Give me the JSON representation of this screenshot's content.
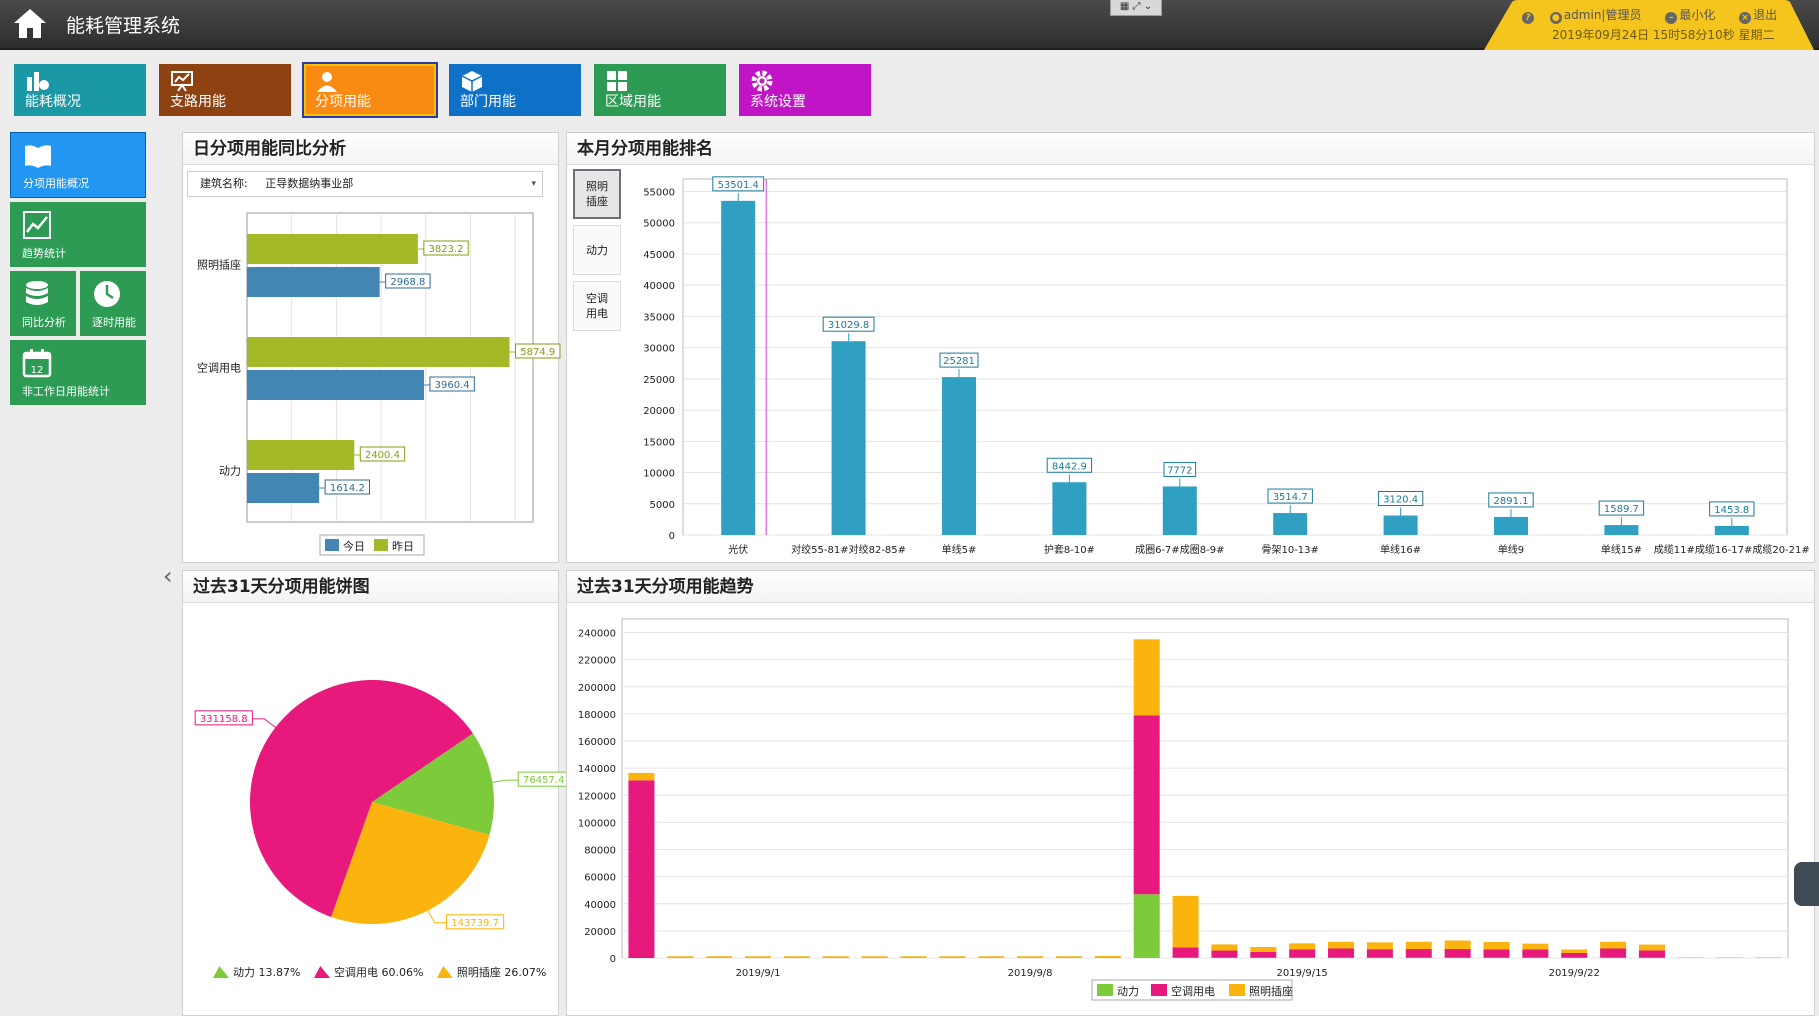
{
  "header": {
    "title": "能耗管理系统",
    "user": "admin|管理员",
    "minimize": "最小化",
    "logout": "退出",
    "datetime": "2019年09月24日 15时58分10秒 星期二"
  },
  "top_nav": [
    {
      "label": "能耗概况",
      "icon": "bar-chart-icon",
      "color": "#1a98a6"
    },
    {
      "label": "支路用能",
      "icon": "presentation-icon",
      "color": "#8e4211"
    },
    {
      "label": "分项用能",
      "icon": "user-icon",
      "color": "#f98a12"
    },
    {
      "label": "部门用能",
      "icon": "cube-icon",
      "color": "#0f70c8"
    },
    {
      "label": "区域用能",
      "icon": "grid-icon",
      "color": "#2e9b55"
    },
    {
      "label": "系统设置",
      "icon": "gear-icon",
      "color": "#c014c6"
    }
  ],
  "side_nav": [
    {
      "label": "分项用能概况",
      "icon": "book-icon"
    },
    {
      "label": "趋势统计",
      "icon": "trend-icon"
    },
    {
      "label": "同比分析",
      "icon": "database-icon"
    },
    {
      "label": "逐时用能",
      "icon": "clock-icon"
    },
    {
      "label": "非工作日用能统计",
      "icon": "calendar-icon",
      "day": "12"
    }
  ],
  "panels": {
    "daily": {
      "title": "日分项用能同比分析",
      "filter_label": "建筑名称:",
      "filter_value": "正导数据纳事业部"
    },
    "ranking": {
      "title": "本月分项用能排名",
      "tabs": [
        "照明插座",
        "动力",
        "空调用电"
      ],
      "active_tab": 0
    },
    "pie": {
      "title": "过去31天分项用能饼图"
    },
    "trend": {
      "title": "过去31天分项用能趋势"
    }
  },
  "colors": {
    "today": "#4286b3",
    "yesterday": "#a5b827",
    "rank_bar": "#2f9fc2",
    "power": "#7dcb3a",
    "aircon": "#e8197c",
    "lighting": "#fbb40d"
  },
  "chart_data": [
    {
      "id": "daily_compare",
      "type": "bar",
      "orientation": "horizontal",
      "categories": [
        "照明插座",
        "空调用电",
        "动力"
      ],
      "series": [
        {
          "name": "昨日",
          "values": [
            3823.2,
            5874.9,
            2400.4
          ]
        },
        {
          "name": "今日",
          "values": [
            2968.8,
            3960.4,
            1614.2
          ]
        }
      ],
      "labels": {
        "照明插座": [
          "3823.2",
          "2968.8"
        ],
        "空调用电": [
          "5874.9",
          "3960.4"
        ],
        "动力": [
          "2400.4",
          "1614.2"
        ]
      },
      "legend": [
        "今日",
        "昨日"
      ],
      "xlim": [
        0,
        6400
      ]
    },
    {
      "id": "monthly_ranking",
      "type": "bar",
      "categories": [
        "光伏",
        "对绞55-81#对绞82-85#",
        "单线5#",
        "护套8-10#",
        "成圈6-7#成圈8-9#",
        "骨架10-13#",
        "单线16#",
        "单线9",
        "单线15#",
        "成缆11#成缆16-17#成缆20-21#"
      ],
      "values": [
        53501.4,
        31029.8,
        25281,
        8442.9,
        7772,
        3514.7,
        3120.4,
        2891.1,
        1589.7,
        1453.8
      ],
      "value_labels": [
        "53501.4",
        "31029.8",
        "25281",
        "8442.9",
        "7772",
        "3514.7",
        "3120.4",
        "2891.1",
        "1589.7",
        "1453.8"
      ],
      "y_ticks": [
        "55000",
        "50000",
        "45000",
        "40000",
        "35000",
        "30000",
        "25000",
        "20000",
        "15000",
        "10000",
        "5000",
        "0"
      ],
      "ylim": [
        0,
        57000
      ]
    },
    {
      "id": "pie_31days",
      "type": "pie",
      "series": [
        {
          "name": "动力",
          "value": 76457.4,
          "label": "76457.4",
          "legend": "动力 13.87%"
        },
        {
          "name": "照明插座",
          "value": 143739.7,
          "label": "143739.7",
          "legend": "照明插座 26.07%"
        },
        {
          "name": "空调用电",
          "value": 331158.8,
          "label": "331158.8",
          "legend": "空调用电 60.06%"
        }
      ]
    },
    {
      "id": "trend_31days",
      "type": "bar",
      "stacked": true,
      "x_ticks": [
        "2019/9/1",
        "2019/9/8",
        "2019/9/15",
        "2019/9/22"
      ],
      "y_ticks": [
        "240000",
        "220000",
        "200000",
        "180000",
        "160000",
        "140000",
        "120000",
        "100000",
        "80000",
        "60000",
        "40000",
        "20000",
        "0"
      ],
      "ylim": [
        0,
        250000
      ],
      "series": [
        {
          "name": "动力",
          "values": [
            0,
            300,
            300,
            300,
            300,
            300,
            300,
            300,
            300,
            300,
            300,
            300,
            300,
            47000,
            300,
            300,
            300,
            300,
            300,
            300,
            300,
            300,
            300,
            300,
            300,
            300,
            300,
            300,
            300,
            300
          ]
        },
        {
          "name": "空调用电",
          "values": [
            131000,
            0,
            0,
            0,
            0,
            0,
            0,
            0,
            0,
            0,
            0,
            0,
            0,
            132000,
            7500,
            5200,
            4300,
            6000,
            6700,
            6200,
            6300,
            6300,
            6000,
            6000,
            3400,
            6700,
            5300,
            0,
            0,
            0
          ]
        },
        {
          "name": "照明插座",
          "values": [
            5500,
            1000,
            1000,
            1000,
            1000,
            1000,
            1000,
            1000,
            1000,
            1000,
            1000,
            1000,
            1200,
            56000,
            38000,
            4500,
            3500,
            4500,
            5000,
            5000,
            5400,
            6300,
            5500,
            4300,
            2600,
            5000,
            4300,
            0,
            0,
            0
          ]
        }
      ],
      "legend": [
        "动力",
        "空调用电",
        "照明插座"
      ]
    }
  ]
}
